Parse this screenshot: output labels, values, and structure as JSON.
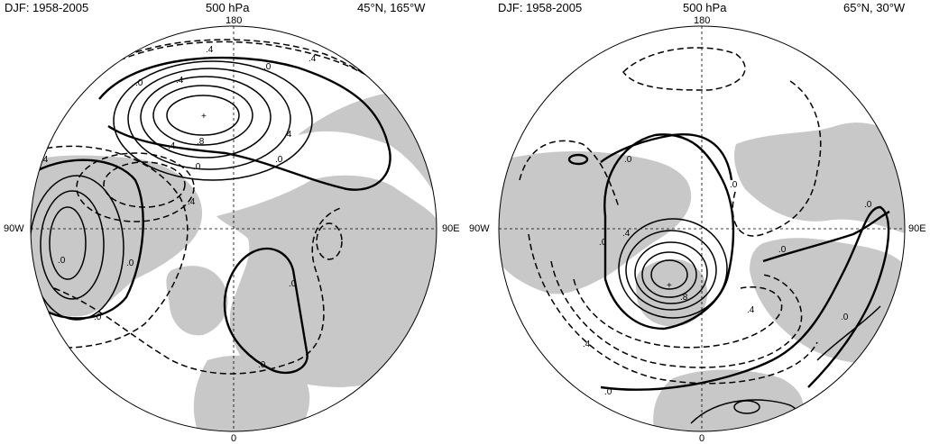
{
  "panels": [
    {
      "season": "DJF: 1958-2005",
      "level": "500 hPa",
      "point": "45°N, 165°W",
      "lon_labels": {
        "top": "180",
        "bottom": "0",
        "left": "90W",
        "right": "90E"
      },
      "contour_labels": [
        ".4",
        ".0",
        ".4",
        ".0",
        ".4",
        ".8",
        ".4",
        ".0",
        ".0",
        ".4",
        ".4",
        ".4",
        ".0",
        ".0",
        ".0",
        ".0",
        ".0"
      ]
    },
    {
      "season": "DJF: 1958-2005",
      "level": "500 hPa",
      "point": "65°N, 30°W",
      "lon_labels": {
        "top": "180",
        "bottom": "0",
        "left": "90W",
        "right": "90E"
      },
      "contour_labels": [
        ".0",
        ".0",
        ".4",
        ".0",
        ".8",
        ".0",
        ".0",
        ".4",
        ".4",
        ".0",
        ".0"
      ]
    }
  ],
  "colors": {
    "land": "#c8c8c8",
    "ocean": "#ffffff",
    "contour": "#000000"
  }
}
